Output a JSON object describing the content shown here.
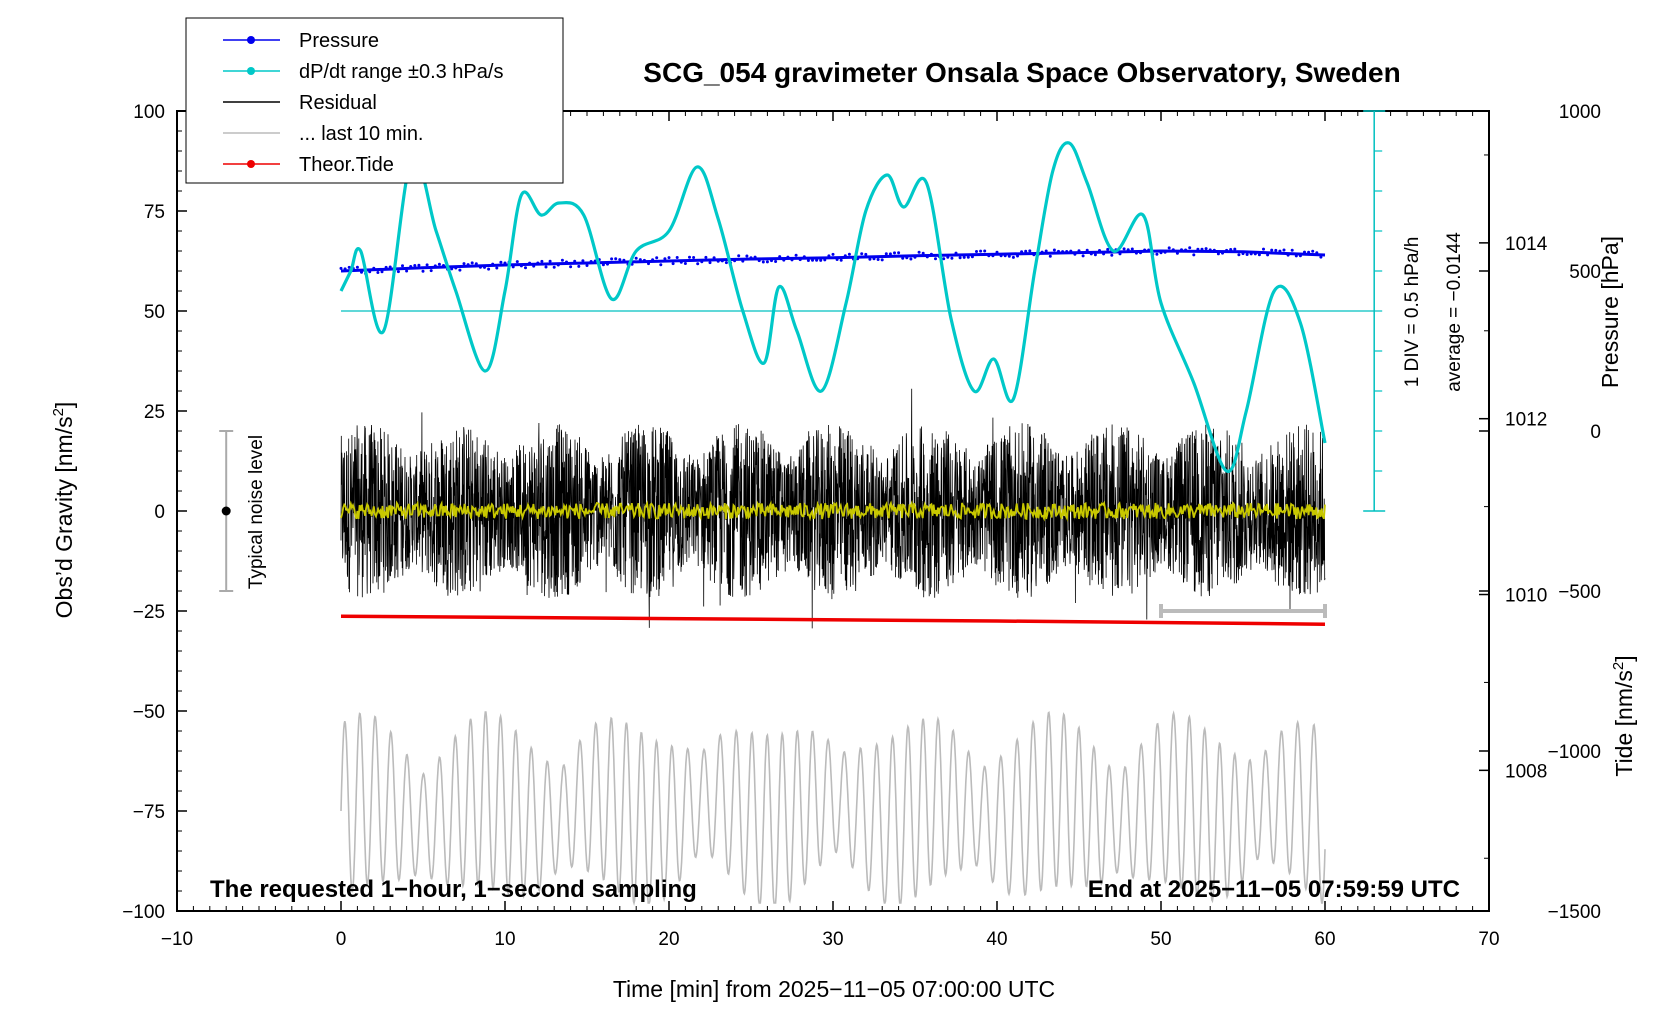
{
  "chart_data": {
    "type": "line",
    "title": "SCG_054 gravimeter Onsala Space Observatory, Sweden",
    "xlabel": "Time [min] from 2025−11−05 07:00:00 UTC",
    "ylabel_left": "Obs’d Gravity [nm/s",
    "ylabel_left_sup": "2",
    "ylabel_left_end": "]",
    "ylabel_pressure": "Pressure [hPa]",
    "ylabel_tide": "Tide [nm/s",
    "ylabel_tide_sup": "2",
    "ylabel_tide_end": "]",
    "xlim": [
      -10,
      70
    ],
    "ylim": [
      -100,
      100
    ],
    "x_ticks": [
      "−10",
      "0",
      "10",
      "20",
      "30",
      "40",
      "50",
      "60",
      "70"
    ],
    "x_tick_values": [
      -10,
      0,
      10,
      20,
      30,
      40,
      50,
      60,
      70
    ],
    "y_ticks": [
      "100",
      "75",
      "50",
      "25",
      "0",
      "−25",
      "−50",
      "−75",
      "−100"
    ],
    "y_tick_values": [
      100,
      75,
      50,
      25,
      0,
      -25,
      -50,
      -75,
      -100
    ],
    "pressure_axis": {
      "ticks": [
        "1014",
        "1012",
        "1010",
        "1008"
      ],
      "tick_values": [
        1014,
        1012,
        1010,
        1008
      ],
      "range": [
        1006.4,
        1015.5
      ]
    },
    "tide_axis": {
      "ticks": [
        "1000",
        "500",
        "0",
        "−500",
        "−1000",
        "−1500"
      ],
      "tick_values": [
        1000,
        500,
        0,
        -500,
        -1000,
        -1500
      ],
      "range": [
        -1500,
        1000
      ]
    },
    "legend": [
      {
        "label": "Pressure",
        "color": "#0000ee",
        "marker": true
      },
      {
        "label": "dP/dt range ±0.3 hPa/s",
        "color": "#00c8c8",
        "marker": true
      },
      {
        "label": "Residual",
        "color": "#000000",
        "marker": false
      },
      {
        "label": "... last 10 min.",
        "color": "#bbbbbb",
        "marker": false
      },
      {
        "label": "Theor.Tide",
        "color": "#ee0000",
        "marker": true
      }
    ],
    "annotations": {
      "noise_label": "Typical noise level",
      "noise_range": [
        -20,
        20
      ],
      "noise_x": -7,
      "div_label": "1 DIV = 0.5 hPa/h",
      "average_label": "average = −0.0144",
      "bottom_left": "The requested 1−hour, 1−second sampling",
      "bottom_right": "End at 2025−11−05 07:59:59 UTC",
      "last10_range_min": [
        50,
        60
      ],
      "dpdt_reference_level": 50
    },
    "series": [
      {
        "name": "Pressure",
        "color": "#0000ee",
        "x": [
          0,
          5,
          10,
          15,
          20,
          25,
          30,
          35,
          40,
          45,
          50,
          55,
          60
        ],
        "values": [
          60.0,
          60.8,
          61.5,
          62.0,
          62.5,
          63.0,
          63.3,
          63.8,
          64.2,
          64.6,
          65.0,
          64.8,
          64.0
        ]
      },
      {
        "name": "dP/dt range",
        "color": "#00c8c8",
        "x": [
          0,
          0.6,
          1.2,
          2.6,
          4.3,
          5.8,
          7.0,
          8.8,
          10.0,
          11.0,
          12.2,
          13.3,
          14.8,
          16.5,
          18.0,
          20.0,
          21.7,
          23.0,
          24.5,
          25.8,
          26.7,
          27.8,
          29.3,
          30.8,
          32.0,
          33.3,
          34.3,
          35.7,
          37.2,
          38.6,
          39.8,
          41.0,
          42.3,
          43.4,
          44.4,
          45.5,
          47.1,
          48.9,
          50.0,
          52.0,
          54.0,
          55.2,
          56.9,
          58.5,
          60.0
        ],
        "values": [
          55,
          60,
          65,
          45,
          88,
          70,
          55,
          35,
          55,
          79,
          74,
          77,
          74,
          53,
          65,
          70,
          86,
          73,
          50,
          37,
          56,
          45,
          30,
          52,
          75,
          84,
          76,
          82,
          48,
          30,
          38,
          28,
          60,
          85,
          92,
          82,
          65,
          74,
          52,
          32,
          10,
          25,
          55,
          47,
          17
        ]
      },
      {
        "name": "Residual",
        "color": "#000000",
        "amplitude": 22
      },
      {
        "name": "Residual smoothed",
        "color": "#c8c800",
        "amplitude": 2
      },
      {
        "name": "... last 10 min.",
        "color": "#bbbbbb",
        "center": -75,
        "amplitude": 22
      },
      {
        "name": "Theor.Tide",
        "color": "#ee0000",
        "x": [
          0,
          20,
          40,
          60
        ],
        "values": [
          -26.3,
          -26.9,
          -27.5,
          -28.3
        ]
      }
    ]
  }
}
